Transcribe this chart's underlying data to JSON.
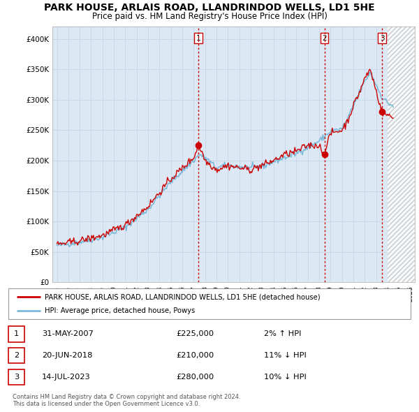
{
  "title": "PARK HOUSE, ARLAIS ROAD, LLANDRINDOD WELLS, LD1 5HE",
  "subtitle": "Price paid vs. HM Land Registry's House Price Index (HPI)",
  "title_fontsize": 10,
  "subtitle_fontsize": 8.5,
  "ylim": [
    0,
    420000
  ],
  "yticks": [
    0,
    50000,
    100000,
    150000,
    200000,
    250000,
    300000,
    350000,
    400000
  ],
  "ytick_labels": [
    "£0",
    "£50K",
    "£100K",
    "£150K",
    "£200K",
    "£250K",
    "£300K",
    "£350K",
    "£400K"
  ],
  "xlim_start": 1994.6,
  "xlim_end": 2026.4,
  "xtick_years": [
    1995,
    1996,
    1997,
    1998,
    1999,
    2000,
    2001,
    2002,
    2003,
    2004,
    2005,
    2006,
    2007,
    2008,
    2009,
    2010,
    2011,
    2012,
    2013,
    2014,
    2015,
    2016,
    2017,
    2018,
    2019,
    2020,
    2021,
    2022,
    2023,
    2024,
    2025,
    2026
  ],
  "hpi_line_color": "#7ab8d9",
  "price_line_color": "#cc0000",
  "grid_color": "#c8d8e8",
  "plot_bg_color": "#dce8f4",
  "hatch_bg_color": "#d0d0d0",
  "hatch_start": 2024.0,
  "sale_points": [
    {
      "year": 2007.42,
      "price": 225000,
      "label": "1"
    },
    {
      "year": 2018.47,
      "price": 210000,
      "label": "2"
    },
    {
      "year": 2023.54,
      "price": 280000,
      "label": "3"
    }
  ],
  "vline_color": "#cc0000",
  "legend_entries": [
    "PARK HOUSE, ARLAIS ROAD, LLANDRINDOD WELLS, LD1 5HE (detached house)",
    "HPI: Average price, detached house, Powys"
  ],
  "table_data": [
    {
      "num": "1",
      "date": "31-MAY-2007",
      "price": "£225,000",
      "change": "2% ↑ HPI"
    },
    {
      "num": "2",
      "date": "20-JUN-2018",
      "price": "£210,000",
      "change": "11% ↓ HPI"
    },
    {
      "num": "3",
      "date": "14-JUL-2023",
      "price": "£280,000",
      "change": "10% ↓ HPI"
    }
  ],
  "footer": "Contains HM Land Registry data © Crown copyright and database right 2024.\nThis data is licensed under the Open Government Licence v3.0."
}
